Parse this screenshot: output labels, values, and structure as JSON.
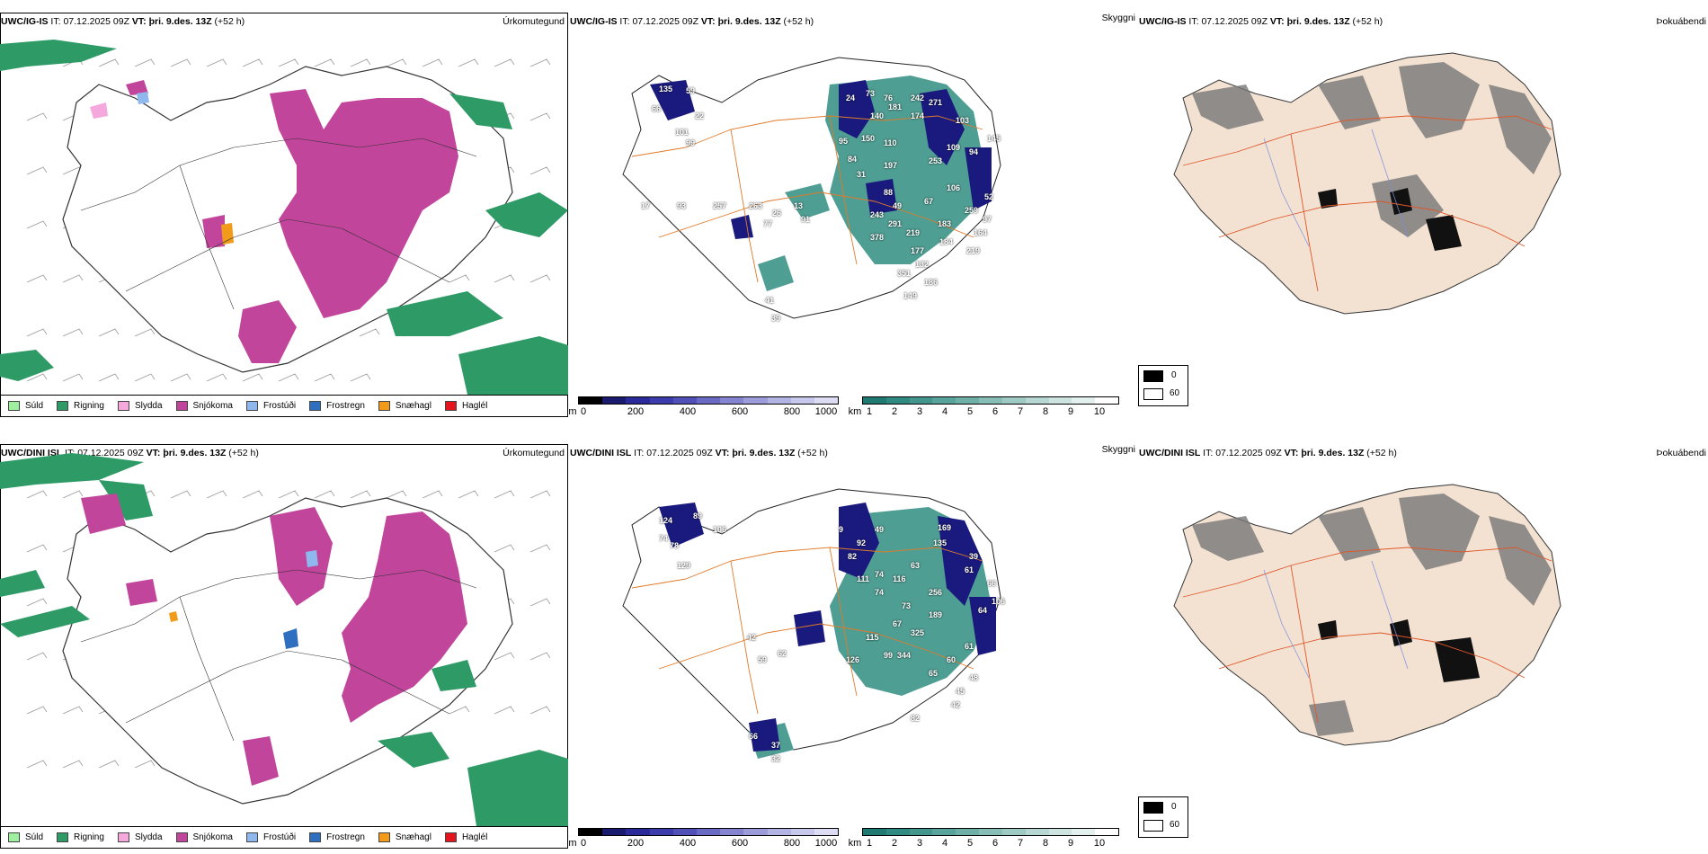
{
  "rows": [
    {
      "model": "UWC/IG-IS",
      "it_label": "IT:",
      "it_value": "07.12.2025 09Z",
      "vt_label": "VT:",
      "vt_value": "þri. 9.des. 13Z",
      "lead": "(+52 h)",
      "left_title": "Úrkomutegund",
      "mid_title": "Skyggni",
      "right_title": "Þokuábendi",
      "snow_depth_labels": [
        "135",
        "59",
        "66",
        "22",
        "101",
        "99",
        "26",
        "13",
        "77",
        "91",
        "24",
        "73",
        "76",
        "140",
        "181",
        "242",
        "271",
        "174",
        "103",
        "95",
        "150",
        "84",
        "110",
        "31",
        "197",
        "109",
        "253",
        "94",
        "145",
        "88",
        "49",
        "106",
        "67",
        "243",
        "291",
        "378",
        "219",
        "183",
        "177",
        "184",
        "351",
        "132",
        "186",
        "149",
        "164",
        "219",
        "259",
        "97",
        "52",
        "41",
        "39",
        "17",
        "93",
        "257",
        "263"
      ]
    },
    {
      "model": "UWC/DINI ISL",
      "it_label": "IT:",
      "it_value": "07.12.2025 09Z",
      "vt_label": "VT:",
      "vt_value": "þri. 9.des. 13Z",
      "lead": "(+52 h)",
      "left_title": "Úrkomutegund",
      "mid_title": "Skyggni",
      "right_title": "Þokuábendi",
      "snow_depth_labels": [
        "124",
        "89",
        "74",
        "78",
        "106",
        "129",
        "42",
        "59",
        "62",
        "9",
        "92",
        "49",
        "82",
        "111",
        "74",
        "74",
        "116",
        "73",
        "67",
        "115",
        "126",
        "99",
        "344",
        "325",
        "189",
        "256",
        "63",
        "135",
        "169",
        "39",
        "61",
        "66",
        "106",
        "64",
        "60",
        "65",
        "48",
        "45",
        "42",
        "82",
        "61",
        "66",
        "37",
        "32"
      ]
    }
  ],
  "precip_legend": [
    {
      "label": "Súld",
      "color": "#9ef0a0"
    },
    {
      "label": "Rigning",
      "color": "#2e9a66"
    },
    {
      "label": "Slydda",
      "color": "#f5a8dc"
    },
    {
      "label": "Snjókoma",
      "color": "#c2459c"
    },
    {
      "label": "Frostúði",
      "color": "#8fb8ee"
    },
    {
      "label": "Frostregn",
      "color": "#2f6fbf"
    },
    {
      "label": "Snæhagl",
      "color": "#f29a1a"
    },
    {
      "label": "Haglél",
      "color": "#e3141c"
    }
  ],
  "snow_bar": {
    "unit": "m",
    "ticks": [
      "0",
      "200",
      "400",
      "600",
      "800",
      "1000"
    ],
    "colors": [
      "#000000",
      "#1a1a6e",
      "#2a2a9a",
      "#3c3cac",
      "#5050b8",
      "#6a6ac4",
      "#8484d0",
      "#9c9cda",
      "#b4b4e4",
      "#c8c8ec",
      "#dcdcf4"
    ]
  },
  "vis_bar": {
    "unit": "km",
    "ticks": [
      "1",
      "2",
      "3",
      "4",
      "5",
      "6",
      "7",
      "8",
      "9",
      "10"
    ],
    "colors": [
      "#1f7a72",
      "#2f8a82",
      "#43968e",
      "#58a39b",
      "#6eb0a8",
      "#86bdb6",
      "#9ecac4",
      "#b6d7d2",
      "#cde4e0",
      "#e2f0ee",
      "#ffffff"
    ]
  },
  "fog_legend": {
    "low": "0",
    "high": "60"
  }
}
